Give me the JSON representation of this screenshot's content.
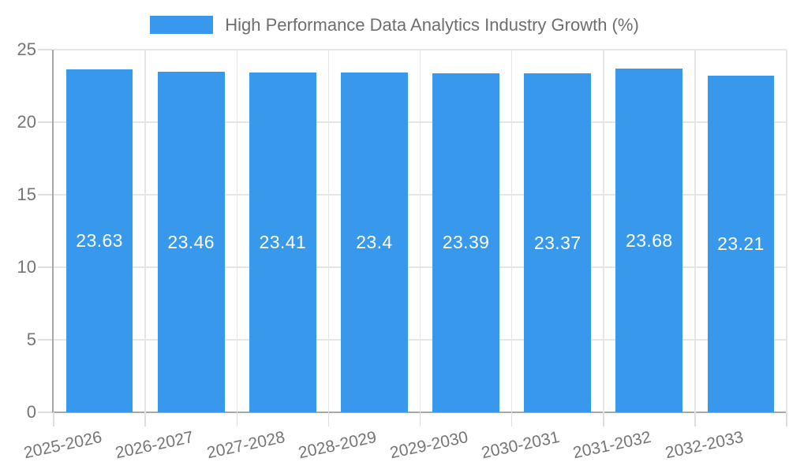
{
  "chart_data": {
    "type": "bar",
    "title": "High Performance Data Analytics Industry Growth (%)",
    "categories": [
      "2025-2026",
      "2026-2027",
      "2027-2028",
      "2028-2029",
      "2029-2030",
      "2030-2031",
      "2031-2032",
      "2032-2033"
    ],
    "values": [
      23.63,
      23.46,
      23.41,
      23.4,
      23.39,
      23.37,
      23.68,
      23.21
    ],
    "value_labels": [
      "23.63",
      "23.46",
      "23.41",
      "23.4",
      "23.39",
      "23.37",
      "23.68",
      "23.21"
    ],
    "xlabel": "",
    "ylabel": "",
    "ylim": [
      0,
      25
    ],
    "yticks": [
      0,
      5,
      10,
      15,
      20,
      25
    ],
    "grid": "on",
    "legend_position": "top",
    "bar_color": "#3899ec",
    "value_label_color": "#ffffff",
    "axis_text_color": "#757575",
    "legend_text_color": "#6e6e6e",
    "grid_color": "#e6e6e6",
    "axis_line_color": "#a8a8a8"
  }
}
